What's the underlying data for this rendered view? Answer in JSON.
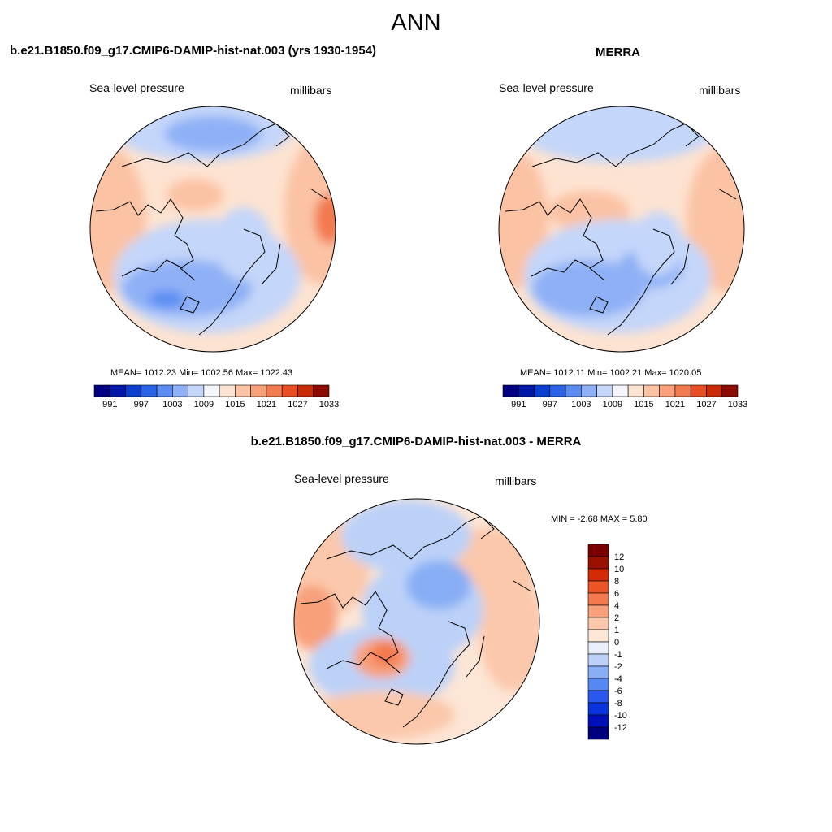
{
  "figure_title": "ANN",
  "palette": {
    "abs": [
      "#000080",
      "#0018a8",
      "#0a3fd0",
      "#2b63e6",
      "#5a8cf2",
      "#8eb0f6",
      "#c4d6f9",
      "#f4f6fb",
      "#fde3d1",
      "#fbc2a4",
      "#f7a07a",
      "#f27a4f",
      "#e84e25",
      "#c92a08",
      "#8b0a00"
    ],
    "diff": [
      "#00007f",
      "#0010b8",
      "#0a34dc",
      "#2a58ee",
      "#5588f2",
      "#87aef5",
      "#bcd1f8",
      "#e9f0fc",
      "#fde6d6",
      "#fbc8ab",
      "#f8a07a",
      "#f37a4d",
      "#ec5425",
      "#d42a05",
      "#9a1000",
      "#7a0000"
    ]
  },
  "panels": [
    {
      "title": "b.e21.B1850.f09_g17.CMIP6-DAMIP-hist-nat.003 (yrs 1930-1954)",
      "left_label": "Sea-level pressure",
      "right_label": "millibars",
      "stats": "MEAN= 1012.23  Min= 1002.56  Max= 1022.43",
      "colorbar_ticks": [
        "991",
        "997",
        "1003",
        "1009",
        "1015",
        "1021",
        "1027",
        "1033"
      ]
    },
    {
      "title": "MERRA",
      "left_label": "Sea-level pressure",
      "right_label": "millibars",
      "stats": "MEAN= 1012.11  Min= 1002.21  Max= 1020.05",
      "colorbar_ticks": [
        "991",
        "997",
        "1003",
        "1009",
        "1015",
        "1021",
        "1027",
        "1033"
      ]
    },
    {
      "title": "b.e21.B1850.f09_g17.CMIP6-DAMIP-hist-nat.003 - MERRA",
      "left_label": "Sea-level pressure",
      "right_label": "millibars",
      "stats": "MIN =  -2.68 MAX =   5.80",
      "colorbar_ticks": [
        "12",
        "10",
        "8",
        "6",
        "4",
        "2",
        "1",
        "0",
        "-1",
        "-2",
        "-4",
        "-6",
        "-8",
        "-10",
        "-12"
      ]
    }
  ]
}
